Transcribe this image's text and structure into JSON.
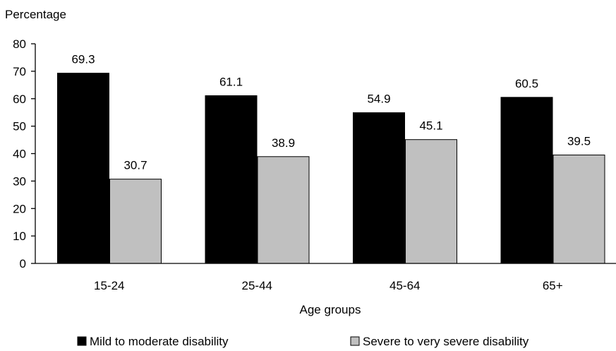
{
  "chart_data": {
    "type": "bar",
    "ylabel": "Percentage",
    "xlabel": "Age groups",
    "categories": [
      "15-24",
      "25-44",
      "45-64",
      "65+"
    ],
    "series": [
      {
        "name": "Mild to moderate disability",
        "values": [
          69.3,
          61.1,
          54.9,
          60.5
        ],
        "color": "#000000"
      },
      {
        "name": "Severe to very severe disability",
        "values": [
          30.7,
          38.9,
          45.1,
          39.5
        ],
        "color": "#c0c0c0"
      }
    ],
    "ylim": [
      0,
      80
    ],
    "yticks": [
      0,
      10,
      20,
      30,
      40,
      50,
      60,
      70,
      80
    ],
    "grid": false,
    "legend_position": "bottom"
  }
}
